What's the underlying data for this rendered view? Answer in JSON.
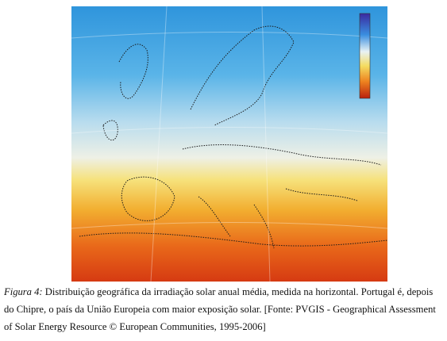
{
  "figure": {
    "caption": {
      "label": "Figura 4:",
      "text": "Distribuição geográfica da irradiação solar anual média, medida na horizontal. Portugal é, depois do Chipre, o país da União Europeia com maior exposição solar. [Fonte: PVGIS - Geographical Assessment of Solar Energy Resource © European Communities, 1995-2006]"
    }
  }
}
